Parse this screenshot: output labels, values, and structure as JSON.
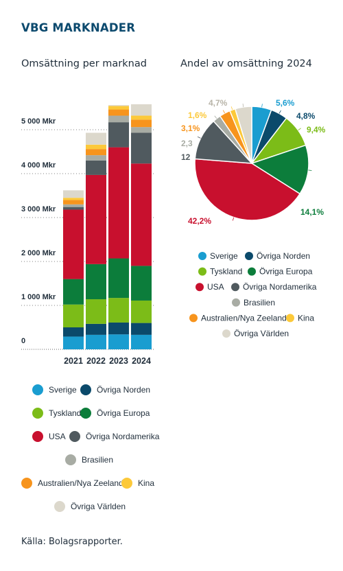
{
  "heading": "VBG MARKNADER",
  "source": "Källa: Bolagsrapporter.",
  "colors": {
    "Sverige": "#1a9dd0",
    "Övriga Norden": "#0b4a6b",
    "Tyskland": "#7cbc18",
    "Övriga Europa": "#0c7d3b",
    "USA": "#c8102e",
    "Övriga Nordamerika": "#505a5f",
    "Brasilien": "#a8aca4",
    "Australien/Nya Zeeland": "#f7941d",
    "Kina": "#fcc93a",
    "Övriga Världen": "#dcd8cc"
  },
  "chart_data": [
    {
      "type": "bar",
      "stacked": true,
      "title": "Omsättning per marknad",
      "categories": [
        "2021",
        "2022",
        "2023",
        "2024"
      ],
      "ylim": [
        0,
        5500
      ],
      "ytick_labels": [
        "0",
        "1 000 Mkr",
        "2 000 Mkr",
        "3 000 Mkr",
        "4 000 Mkr",
        "5 000 Mkr"
      ],
      "yticks": [
        0,
        1000,
        2000,
        3000,
        4000,
        5000
      ],
      "grid": false,
      "legend_position": "bottom",
      "series": [
        {
          "name": "Sverige",
          "values": [
            290,
            330,
            340,
            330
          ]
        },
        {
          "name": "Övriga Norden",
          "values": [
            210,
            250,
            270,
            270
          ]
        },
        {
          "name": "Tyskland",
          "values": [
            520,
            560,
            560,
            510
          ]
        },
        {
          "name": "Övriga Europa",
          "values": [
            580,
            800,
            900,
            790
          ]
        },
        {
          "name": "USA",
          "values": [
            1580,
            2030,
            2530,
            2330
          ]
        },
        {
          "name": "Övriga Nordamerika",
          "values": [
            60,
            330,
            570,
            700
          ]
        },
        {
          "name": "Brasilien",
          "values": [
            60,
            120,
            150,
            130
          ]
        },
        {
          "name": "Australien/Nya Zeeland",
          "values": [
            100,
            140,
            140,
            170
          ]
        },
        {
          "name": "Kina",
          "values": [
            50,
            100,
            80,
            90
          ]
        },
        {
          "name": "Övriga Världen",
          "values": [
            170,
            270,
            20,
            260
          ]
        }
      ]
    },
    {
      "type": "pie",
      "title": "Andel av omsättning 2024",
      "legend_position": "bottom",
      "slices": [
        {
          "name": "Sverige",
          "value": 5.6,
          "label": "5,6%"
        },
        {
          "name": "Övriga Norden",
          "value": 4.8,
          "label": "4,8%"
        },
        {
          "name": "Tyskland",
          "value": 9.4,
          "label": "9,4%"
        },
        {
          "name": "Övriga Europa",
          "value": 14.1,
          "label": "14,1%"
        },
        {
          "name": "USA",
          "value": 42.2,
          "label": "42,2%"
        },
        {
          "name": "Övriga Nordamerika",
          "value": 12.0,
          "label": "12"
        },
        {
          "name": "Brasilien",
          "value": 2.3,
          "label": "2,3"
        },
        {
          "name": "Australien/Nya Zeeland",
          "value": 3.1,
          "label": "3,1%"
        },
        {
          "name": "Kina",
          "value": 1.6,
          "label": "1,6%"
        },
        {
          "name": "Övriga Världen",
          "value": 4.7,
          "label": "4,7%"
        }
      ]
    }
  ]
}
